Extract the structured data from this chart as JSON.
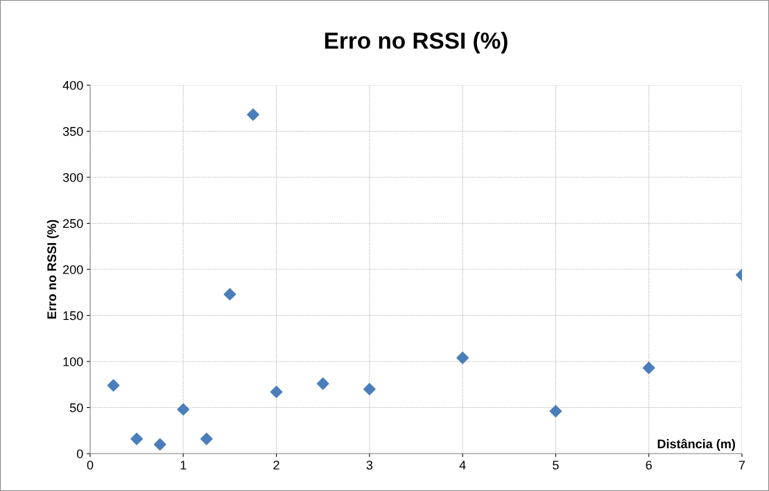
{
  "chart_data": {
    "type": "scatter",
    "title": "Erro no RSSI (%)",
    "xlabel": "Distância (m)",
    "ylabel": "Erro no RSSI (%)",
    "x": [
      0.25,
      0.5,
      0.75,
      1,
      1.25,
      1.5,
      1.75,
      2,
      2.5,
      3,
      4,
      5,
      6,
      7
    ],
    "series": [
      {
        "color": "#4a7ebb",
        "values": [
          74,
          16,
          10,
          48,
          16,
          173,
          368,
          67,
          76,
          70,
          104,
          46,
          93,
          194
        ]
      }
    ],
    "xlim": [
      0,
      7
    ],
    "xticks": [
      0,
      1,
      2,
      3,
      4,
      5,
      6,
      7
    ],
    "ylim": [
      0,
      400
    ],
    "yticks": [
      0,
      50,
      100,
      150,
      200,
      250,
      300,
      350,
      400
    ],
    "grid": true,
    "marker": "diamond"
  }
}
